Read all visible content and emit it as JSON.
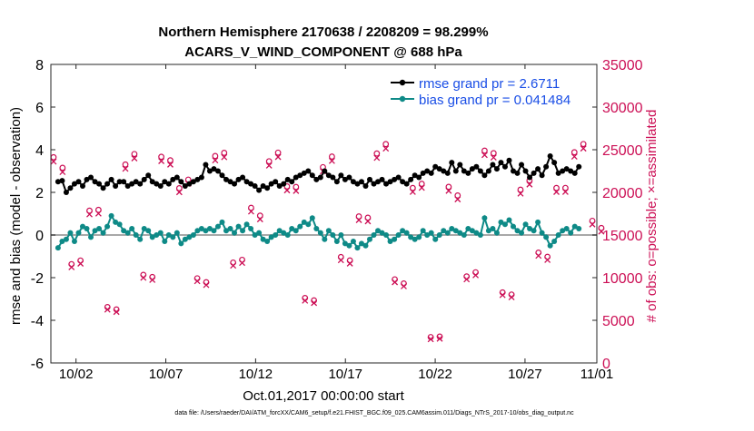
{
  "chart_data": {
    "type": "line",
    "title": "Northern Hemisphere 2170638 / 2208209 = 98.299%",
    "subtitle": "ACARS_V_WIND_COMPONENT @ 688 hPa",
    "xlabel": "Oct.01,2017 00:00:00 start",
    "ylabel_left": "rmse and bias (model - observation)",
    "ylabel_right": "# of obs: o=possible; ×=assimilated",
    "footer": "data file: /Users/raeder/DAI/ATM_forcXX/CAM6_setup/f.e21.FHIST_BGC.f09_025.CAM6assim.011/Diags_NTrS_2017-10/obs_diag_output.nc",
    "ylim_left": [
      -6,
      8
    ],
    "ylim_right": [
      0,
      35000
    ],
    "xlim": [
      0.6,
      31.0
    ],
    "left_ticks": [
      -6,
      -4,
      -2,
      0,
      2,
      4,
      6,
      8
    ],
    "right_ticks": [
      0,
      5000,
      10000,
      15000,
      20000,
      25000,
      30000,
      35000
    ],
    "x_ticks": [
      {
        "value": 2,
        "label": "10/02"
      },
      {
        "value": 7,
        "label": "10/07"
      },
      {
        "value": 12,
        "label": "10/12"
      },
      {
        "value": 17,
        "label": "10/17"
      },
      {
        "value": 22,
        "label": "10/22"
      },
      {
        "value": 27,
        "label": "10/27"
      },
      {
        "value": 31,
        "label": "11/01"
      }
    ],
    "legend": {
      "rmse_label": "rmse grand pr = 2.6711",
      "bias_label": "bias grand pr = 0.041484"
    },
    "colors": {
      "rmse": "#000000",
      "bias": "#0e8a87",
      "obs": "#cc0f55",
      "zero_line": "#a8a8a8",
      "legend_text": "#1a4ee6"
    },
    "daily_nobs": [
      23500,
      12000,
      17500,
      6500,
      24000,
      10000,
      24500,
      20800,
      9600,
      25000,
      11700,
      17800,
      24500,
      20200,
      7600,
      23600,
      12000,
      17500,
      24800,
      9500,
      21200,
      3000,
      20300,
      10500,
      24200,
      8300,
      20800,
      12500,
      21000,
      24800,
      16200
    ],
    "rmse": [
      2.5,
      2.55,
      2.0,
      2.2,
      2.4,
      2.5,
      2.3,
      2.6,
      2.7,
      2.5,
      2.4,
      2.2,
      2.4,
      2.6,
      2.3,
      2.5,
      2.5,
      2.3,
      2.4,
      2.5,
      2.4,
      2.6,
      2.8,
      2.5,
      2.4,
      2.3,
      2.5,
      2.4,
      2.6,
      2.7,
      2.5,
      2.3,
      2.4,
      2.5,
      2.6,
      2.7,
      3.3,
      3.0,
      3.1,
      3.0,
      2.8,
      2.6,
      2.5,
      2.4,
      2.6,
      2.7,
      2.5,
      2.4,
      2.3,
      2.1,
      2.3,
      2.2,
      2.4,
      2.5,
      2.3,
      2.4,
      2.6,
      2.5,
      2.7,
      2.8,
      2.9,
      3.0,
      2.8,
      2.6,
      2.7,
      3.0,
      2.8,
      2.7,
      2.5,
      2.8,
      2.6,
      2.7,
      2.5,
      2.4,
      2.5,
      2.3,
      2.6,
      2.4,
      2.5,
      2.6,
      2.4,
      2.5,
      2.6,
      2.7,
      2.5,
      2.4,
      2.6,
      2.8,
      2.7,
      2.9,
      3.0,
      2.9,
      3.2,
      3.1,
      3.0,
      2.9,
      3.4,
      3.0,
      3.3,
      3.0,
      2.9,
      3.1,
      3.2,
      3.0,
      2.8,
      3.0,
      3.3,
      3.1,
      3.4,
      3.2,
      3.5,
      3.0,
      2.9,
      3.3,
      3.0,
      2.7,
      2.9,
      3.1,
      2.8,
      3.2,
      3.7,
      3.4,
      2.9,
      3.0,
      3.1,
      3.0,
      2.9,
      3.2
    ],
    "bias": [
      -0.6,
      -0.3,
      -0.2,
      0.1,
      -0.3,
      0.1,
      0.4,
      0.3,
      -0.1,
      0.2,
      0.3,
      0.1,
      0.4,
      0.9,
      0.6,
      0.5,
      0.2,
      0.1,
      0.3,
      0.0,
      -0.2,
      0.3,
      0.2,
      -0.1,
      0.0,
      0.1,
      -0.3,
      0.0,
      -0.1,
      0.1,
      -0.4,
      -0.2,
      -0.1,
      0.0,
      0.2,
      0.3,
      0.2,
      0.3,
      0.2,
      0.4,
      0.6,
      0.2,
      0.3,
      0.1,
      0.4,
      0.2,
      0.5,
      0.3,
      0.0,
      0.1,
      -0.2,
      -0.3,
      -0.1,
      0.0,
      0.2,
      0.1,
      0.0,
      0.3,
      0.2,
      0.4,
      0.6,
      0.5,
      0.8,
      0.3,
      0.1,
      -0.2,
      0.2,
      0.0,
      -0.3,
      0.0,
      -0.4,
      -0.5,
      -0.3,
      -0.6,
      -0.4,
      -0.5,
      -0.2,
      0.0,
      0.2,
      0.1,
      0.0,
      -0.3,
      -0.2,
      0.0,
      0.2,
      0.1,
      -0.1,
      -0.2,
      -0.1,
      0.2,
      0.0,
      0.1,
      -0.2,
      0.0,
      0.2,
      0.1,
      0.3,
      0.2,
      0.1,
      0.0,
      0.3,
      0.2,
      0.1,
      0.0,
      0.8,
      0.2,
      0.3,
      0.1,
      0.6,
      0.5,
      0.7,
      0.4,
      0.2,
      0.1,
      0.5,
      0.3,
      0.2,
      0.6,
      0.1,
      -0.1,
      -0.5,
      -0.3,
      0.0,
      0.2,
      0.3,
      0.1,
      0.4,
      0.3
    ]
  }
}
